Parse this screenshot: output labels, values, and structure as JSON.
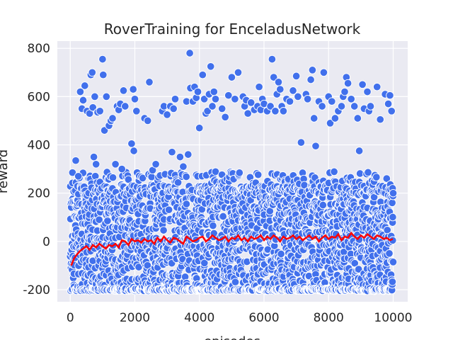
{
  "chart_data": {
    "type": "scatter",
    "title": "RoverTraining for EnceladusNetwork",
    "xlabel": "episodes",
    "ylabel": "reward",
    "xlim": [
      -400,
      10450
    ],
    "ylim": [
      -250,
      830
    ],
    "xticks": [
      0,
      2000,
      4000,
      6000,
      8000,
      10000
    ],
    "yticks": [
      -200,
      0,
      200,
      400,
      600,
      800
    ],
    "grid": true,
    "legend": "none",
    "colors": {
      "background": "#eaeaf2",
      "grid": "#ffffff",
      "scatter_fill": "#4170ec",
      "scatter_edge": "#ffffff",
      "moving_average": "#ff0000"
    },
    "series": [
      {
        "kind": "scatter",
        "points": [
          [
            70,
            285
          ],
          [
            170,
            335
          ],
          [
            250,
            270
          ],
          [
            310,
            620
          ],
          [
            360,
            550
          ],
          [
            400,
            585
          ],
          [
            450,
            645
          ],
          [
            520,
            540
          ],
          [
            600,
            530
          ],
          [
            640,
            690
          ],
          [
            680,
            700
          ],
          [
            700,
            555
          ],
          [
            730,
            350
          ],
          [
            760,
            600
          ],
          [
            800,
            320
          ],
          [
            850,
            535
          ],
          [
            920,
            540
          ],
          [
            1000,
            755
          ],
          [
            1020,
            690
          ],
          [
            1060,
            460
          ],
          [
            1120,
            600
          ],
          [
            1200,
            480
          ],
          [
            1260,
            500
          ],
          [
            1310,
            510
          ],
          [
            1400,
            320
          ],
          [
            1450,
            560
          ],
          [
            1500,
            545
          ],
          [
            1550,
            570
          ],
          [
            1600,
            300
          ],
          [
            1650,
            625
          ],
          [
            1700,
            560
          ],
          [
            1900,
            405
          ],
          [
            1950,
            630
          ],
          [
            1970,
            375
          ],
          [
            2000,
            590
          ],
          [
            2050,
            540
          ],
          [
            2300,
            510
          ],
          [
            2400,
            500
          ],
          [
            2450,
            660
          ],
          [
            2550,
            295
          ],
          [
            2650,
            320
          ],
          [
            2850,
            540
          ],
          [
            2900,
            560
          ],
          [
            3000,
            525
          ],
          [
            3100,
            560
          ],
          [
            3150,
            370
          ],
          [
            3200,
            550
          ],
          [
            3250,
            590
          ],
          [
            3400,
            350
          ],
          [
            3500,
            310
          ],
          [
            3600,
            580
          ],
          [
            3650,
            360
          ],
          [
            3700,
            780
          ],
          [
            3720,
            635
          ],
          [
            3800,
            580
          ],
          [
            3850,
            640
          ],
          [
            3900,
            595
          ],
          [
            3950,
            620
          ],
          [
            4000,
            470
          ],
          [
            4100,
            690
          ],
          [
            4150,
            590
          ],
          [
            4200,
            530
          ],
          [
            4250,
            540
          ],
          [
            4300,
            610
          ],
          [
            4350,
            725
          ],
          [
            4400,
            560
          ],
          [
            4450,
            620
          ],
          [
            4500,
            590
          ],
          [
            4700,
            550
          ],
          [
            4800,
            515
          ],
          [
            4900,
            605
          ],
          [
            5000,
            680
          ],
          [
            5100,
            590
          ],
          [
            5200,
            700
          ],
          [
            5350,
            600
          ],
          [
            5400,
            560
          ],
          [
            5450,
            585
          ],
          [
            5500,
            530
          ],
          [
            5600,
            575
          ],
          [
            5700,
            545
          ],
          [
            5800,
            560
          ],
          [
            5850,
            640
          ],
          [
            5900,
            545
          ],
          [
            5950,
            590
          ],
          [
            6000,
            570
          ],
          [
            6100,
            540
          ],
          [
            6200,
            560
          ],
          [
            6250,
            755
          ],
          [
            6300,
            680
          ],
          [
            6350,
            540
          ],
          [
            6400,
            610
          ],
          [
            6450,
            660
          ],
          [
            6500,
            630
          ],
          [
            6550,
            560
          ],
          [
            6600,
            540
          ],
          [
            6700,
            590
          ],
          [
            6800,
            580
          ],
          [
            6900,
            625
          ],
          [
            7000,
            685
          ],
          [
            7050,
            600
          ],
          [
            7150,
            410
          ],
          [
            7300,
            610
          ],
          [
            7350,
            590
          ],
          [
            7450,
            670
          ],
          [
            7500,
            710
          ],
          [
            7550,
            510
          ],
          [
            7600,
            395
          ],
          [
            7700,
            580
          ],
          [
            7800,
            560
          ],
          [
            7850,
            700
          ],
          [
            8000,
            600
          ],
          [
            8050,
            490
          ],
          [
            8100,
            580
          ],
          [
            8200,
            510
          ],
          [
            8300,
            540
          ],
          [
            8400,
            560
          ],
          [
            8450,
            600
          ],
          [
            8500,
            620
          ],
          [
            8550,
            680
          ],
          [
            8600,
            655
          ],
          [
            8700,
            590
          ],
          [
            8800,
            560
          ],
          [
            8900,
            510
          ],
          [
            8950,
            375
          ],
          [
            9050,
            650
          ],
          [
            9100,
            550
          ],
          [
            9200,
            620
          ],
          [
            9250,
            540
          ],
          [
            9300,
            560
          ],
          [
            9500,
            640
          ],
          [
            9600,
            505
          ],
          [
            9750,
            610
          ],
          [
            9850,
            570
          ],
          [
            9900,
            605
          ],
          [
            9950,
            540
          ],
          [
            9980,
            220
          ],
          [
            10000,
            200
          ]
        ],
        "dense_band": {
          "x_range": [
            0,
            10000
          ],
          "y_range": [
            -205,
            300
          ],
          "description": "thousands of overlapping episode rewards"
        }
      },
      {
        "kind": "line",
        "x": [
          30,
          120,
          200,
          300,
          400,
          500,
          600,
          700,
          800,
          900,
          1000,
          1100,
          1200,
          1300,
          1400,
          1500,
          1600,
          1700,
          1800,
          1900,
          2000,
          2100,
          2200,
          2300,
          2400,
          2500,
          2600,
          2700,
          2800,
          2900,
          3000,
          3100,
          3200,
          3300,
          3400,
          3500,
          3600,
          3700,
          3800,
          3900,
          4000,
          4100,
          4200,
          4300,
          4400,
          4500,
          4600,
          4700,
          4800,
          4900,
          5000,
          5100,
          5200,
          5300,
          5400,
          5500,
          5600,
          5700,
          5800,
          5900,
          6000,
          6100,
          6200,
          6300,
          6400,
          6500,
          6600,
          6700,
          6800,
          6900,
          7000,
          7100,
          7200,
          7300,
          7400,
          7500,
          7600,
          7700,
          7800,
          7900,
          8000,
          8100,
          8200,
          8300,
          8400,
          8500,
          8600,
          8700,
          8800,
          8900,
          9000,
          9100,
          9200,
          9300,
          9400,
          9500,
          9600,
          9700,
          9800,
          9900,
          9990
        ],
        "y": [
          -100,
          -70,
          -55,
          -40,
          -30,
          -20,
          -35,
          -15,
          -25,
          -10,
          -20,
          -30,
          -15,
          -20,
          -10,
          -25,
          5,
          0,
          -15,
          10,
          0,
          5,
          -5,
          10,
          0,
          5,
          -10,
          15,
          0,
          20,
          5,
          -5,
          15,
          10,
          0,
          -10,
          20,
          10,
          0,
          5,
          15,
          20,
          0,
          10,
          25,
          15,
          5,
          10,
          20,
          0,
          15,
          10,
          25,
          5,
          15,
          0,
          20,
          10,
          15,
          25,
          5,
          20,
          10,
          25,
          15,
          0,
          20,
          10,
          15,
          25,
          10,
          20,
          5,
          15,
          25,
          10,
          20,
          0,
          15,
          25,
          10,
          20,
          15,
          30,
          5,
          20,
          15,
          35,
          20,
          10,
          25,
          15,
          30,
          20,
          10,
          25,
          20,
          10,
          15,
          5,
          10
        ]
      }
    ]
  }
}
